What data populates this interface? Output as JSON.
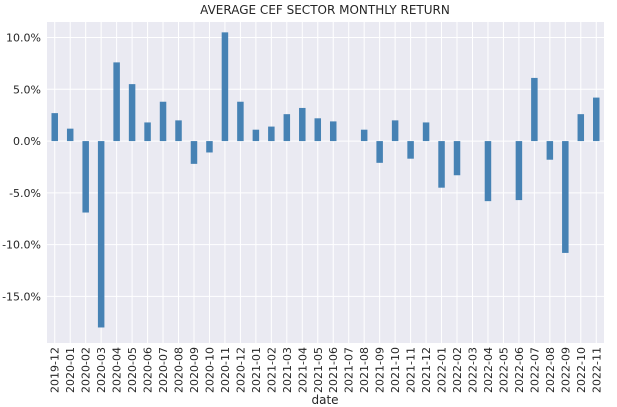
{
  "chart_data": {
    "type": "bar",
    "title": "AVERAGE CEF SECTOR MONTHLY RETURN",
    "xlabel": "date",
    "ylabel": "",
    "ylim": [
      -19.5,
      11.5
    ],
    "yticks": [
      10,
      5,
      0,
      -5,
      -10,
      -15
    ],
    "ytick_labels": [
      "10.0%",
      "5.0%",
      "0.0%",
      "-5.0%",
      "-10.0%",
      "-15.0%"
    ],
    "grid": true,
    "bar_color": "#4682b4",
    "background_color": "#eaeaf2",
    "categories": [
      "2019-12",
      "2020-01",
      "2020-02",
      "2020-03",
      "2020-04",
      "2020-05",
      "2020-06",
      "2020-07",
      "2020-08",
      "2020-09",
      "2020-10",
      "2020-11",
      "2020-12",
      "2021-01",
      "2021-02",
      "2021-03",
      "2021-04",
      "2021-05",
      "2021-06",
      "2021-07",
      "2021-08",
      "2021-09",
      "2021-10",
      "2021-11",
      "2021-12",
      "2022-01",
      "2022-02",
      "2022-03",
      "2022-04",
      "2022-05",
      "2022-06",
      "2022-07",
      "2022-08",
      "2022-09",
      "2022-10",
      "2022-11"
    ],
    "values": [
      2.7,
      1.2,
      -6.9,
      -18.0,
      7.6,
      5.5,
      1.8,
      3.8,
      2.0,
      -2.2,
      -1.1,
      10.5,
      3.8,
      1.1,
      1.4,
      2.6,
      3.2,
      2.2,
      1.9,
      0.0,
      1.1,
      -2.1,
      2.0,
      -1.7,
      1.8,
      -4.5,
      -3.3,
      0.0,
      -5.8,
      0.0,
      -5.7,
      6.1,
      -1.8,
      -10.8,
      2.6,
      4.2
    ]
  }
}
